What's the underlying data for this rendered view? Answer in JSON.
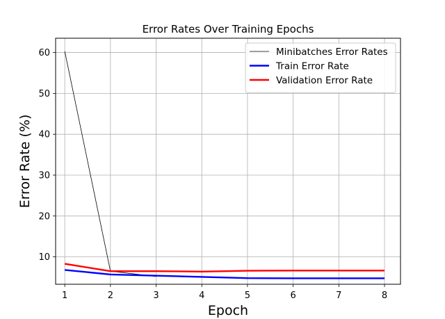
{
  "chart_data": {
    "type": "line",
    "title": "Error Rates Over Training Epochs",
    "xlabel": "Epoch",
    "ylabel": "Error Rate (%)",
    "x": [
      1,
      2,
      3,
      4,
      5,
      6,
      7,
      8
    ],
    "xlim": [
      0.8,
      8.35
    ],
    "ylim": [
      3.3,
      63.5
    ],
    "xticks": [
      1,
      2,
      3,
      4,
      5,
      6,
      7,
      8
    ],
    "yticks": [
      10,
      20,
      30,
      40,
      50,
      60
    ],
    "grid": true,
    "legend_position": "top-right",
    "series": [
      {
        "name": "Minibatches Error Rates",
        "color": "#000000",
        "style": "thin",
        "x": [
          1,
          2,
          3
        ],
        "values": [
          60.3,
          6.5,
          5.2
        ]
      },
      {
        "name": "Train Error Rate",
        "color": "#0000ff",
        "style": "thick",
        "x": [
          1,
          2,
          3,
          4,
          5,
          6,
          7,
          8
        ],
        "values": [
          6.8,
          5.7,
          5.4,
          5.1,
          4.8,
          4.75,
          4.75,
          4.75
        ]
      },
      {
        "name": "Validation Error Rate",
        "color": "#ff0000",
        "style": "thick",
        "x": [
          1,
          2,
          3,
          4,
          5,
          6,
          7,
          8
        ],
        "values": [
          8.3,
          6.5,
          6.5,
          6.4,
          6.6,
          6.65,
          6.65,
          6.65
        ]
      }
    ]
  }
}
